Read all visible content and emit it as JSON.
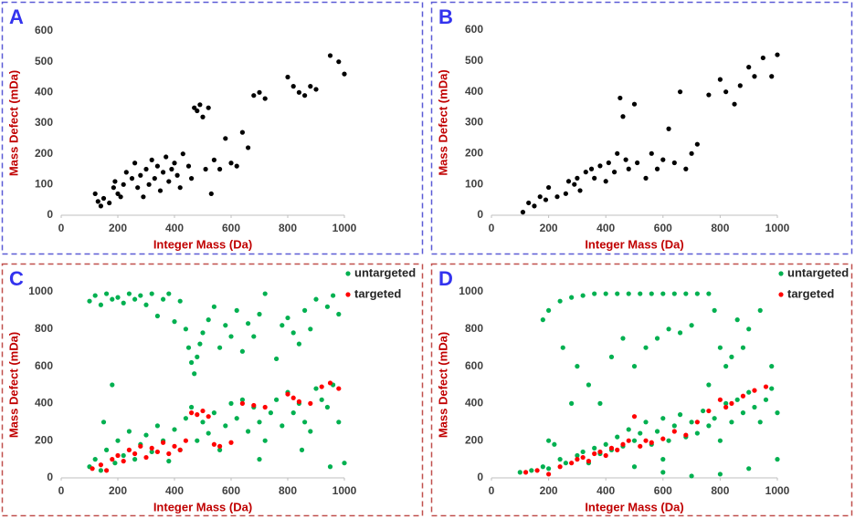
{
  "chart_data": [
    {
      "type": "scatter",
      "panel_label": "A",
      "xlabel": "Integer Mass (Da)",
      "ylabel": "Mass Defect (mDa)",
      "xlim": [
        0,
        1000
      ],
      "ylim": [
        0,
        600
      ],
      "xticks": [
        0,
        200,
        400,
        600,
        800,
        1000
      ],
      "yticks": [
        0,
        100,
        200,
        300,
        400,
        500,
        600
      ],
      "series": [
        {
          "color": "#000000",
          "x": [
            120,
            130,
            140,
            150,
            170,
            185,
            190,
            200,
            210,
            220,
            230,
            250,
            260,
            270,
            280,
            290,
            300,
            310,
            320,
            330,
            340,
            350,
            360,
            370,
            380,
            390,
            400,
            410,
            420,
            430,
            450,
            460,
            470,
            480,
            490,
            500,
            520,
            510,
            530,
            540,
            560,
            580,
            600,
            620,
            640,
            660,
            680,
            700,
            720,
            800,
            820,
            840,
            860,
            880,
            900,
            950,
            980,
            1000
          ],
          "y": [
            70,
            45,
            30,
            55,
            40,
            90,
            110,
            70,
            60,
            100,
            140,
            120,
            170,
            90,
            130,
            60,
            150,
            100,
            180,
            120,
            160,
            80,
            140,
            190,
            110,
            150,
            170,
            130,
            90,
            200,
            160,
            120,
            350,
            340,
            360,
            320,
            350,
            150,
            70,
            180,
            150,
            250,
            170,
            160,
            270,
            220,
            390,
            400,
            380,
            450,
            420,
            400,
            390,
            420,
            410,
            520,
            500,
            460
          ]
        }
      ]
    },
    {
      "type": "scatter",
      "panel_label": "B",
      "xlabel": "Integer Mass (Da)",
      "ylabel": "Mass Defect (mDa)",
      "xlim": [
        0,
        1000
      ],
      "ylim": [
        0,
        600
      ],
      "xticks": [
        0,
        200,
        400,
        600,
        800,
        1000
      ],
      "yticks": [
        0,
        100,
        200,
        300,
        400,
        500,
        600
      ],
      "series": [
        {
          "color": "#000000",
          "x": [
            110,
            130,
            150,
            170,
            190,
            200,
            230,
            260,
            270,
            290,
            300,
            310,
            330,
            350,
            360,
            380,
            400,
            410,
            430,
            440,
            450,
            460,
            470,
            480,
            500,
            510,
            540,
            560,
            580,
            600,
            620,
            640,
            660,
            680,
            700,
            720,
            760,
            800,
            820,
            850,
            870,
            900,
            920,
            950,
            980,
            1000
          ],
          "y": [
            10,
            40,
            30,
            60,
            50,
            90,
            60,
            70,
            110,
            100,
            120,
            80,
            140,
            150,
            120,
            160,
            110,
            170,
            140,
            200,
            380,
            320,
            180,
            150,
            360,
            170,
            120,
            200,
            150,
            180,
            280,
            170,
            400,
            150,
            200,
            230,
            390,
            440,
            400,
            360,
            420,
            480,
            450,
            510,
            450,
            520
          ]
        }
      ]
    },
    {
      "type": "scatter",
      "panel_label": "C",
      "xlabel": "Integer Mass (Da)",
      "ylabel": "Mass Defect (mDa)",
      "xlim": [
        0,
        1000
      ],
      "ylim": [
        0,
        1000
      ],
      "xticks": [
        0,
        200,
        400,
        600,
        800,
        1000
      ],
      "yticks": [
        0,
        200,
        400,
        600,
        800,
        1000
      ],
      "legend": "top-right",
      "series": [
        {
          "name": "untargeted",
          "color": "#00b050",
          "x": [
            100,
            120,
            140,
            160,
            180,
            190,
            200,
            220,
            240,
            260,
            280,
            300,
            320,
            340,
            360,
            380,
            400,
            420,
            440,
            460,
            480,
            500,
            520,
            540,
            560,
            580,
            600,
            620,
            640,
            660,
            680,
            700,
            720,
            740,
            760,
            780,
            800,
            820,
            840,
            860,
            880,
            900,
            920,
            940,
            960,
            980,
            1000,
            100,
            120,
            140,
            160,
            180,
            200,
            220,
            240,
            260,
            280,
            300,
            320,
            340,
            360,
            380,
            400,
            420,
            440,
            450,
            460,
            470,
            480,
            490,
            500,
            520,
            540,
            560,
            580,
            600,
            620,
            640,
            660,
            680,
            700,
            720,
            760,
            780,
            800,
            820,
            840,
            860,
            880,
            900,
            940,
            960,
            980,
            150,
            700,
            850,
            950
          ],
          "y": [
            60,
            100,
            40,
            150,
            500,
            80,
            200,
            120,
            250,
            100,
            180,
            230,
            140,
            280,
            200,
            90,
            260,
            150,
            320,
            380,
            200,
            300,
            240,
            350,
            150,
            280,
            400,
            320,
            420,
            250,
            380,
            300,
            200,
            350,
            420,
            280,
            460,
            350,
            400,
            300,
            250,
            480,
            420,
            380,
            500,
            300,
            80,
            950,
            980,
            930,
            990,
            960,
            970,
            940,
            990,
            960,
            980,
            930,
            990,
            870,
            960,
            990,
            840,
            950,
            800,
            700,
            620,
            560,
            650,
            720,
            780,
            850,
            920,
            700,
            820,
            760,
            900,
            680,
            830,
            760,
            880,
            990,
            640,
            820,
            860,
            780,
            720,
            900,
            800,
            960,
            920,
            980,
            880,
            300,
            100,
            150,
            60
          ]
        },
        {
          "name": "targeted",
          "color": "#ff0000",
          "x": [
            110,
            140,
            160,
            180,
            200,
            220,
            240,
            260,
            280,
            300,
            320,
            340,
            360,
            380,
            400,
            420,
            440,
            460,
            480,
            500,
            520,
            540,
            560,
            600,
            640,
            680,
            720,
            800,
            820,
            840,
            880,
            920,
            950,
            980
          ],
          "y": [
            50,
            70,
            40,
            100,
            120,
            90,
            150,
            130,
            170,
            110,
            160,
            140,
            190,
            130,
            170,
            150,
            200,
            350,
            340,
            360,
            330,
            180,
            170,
            190,
            400,
            390,
            380,
            450,
            430,
            410,
            400,
            490,
            510,
            480
          ]
        }
      ]
    },
    {
      "type": "scatter",
      "panel_label": "D",
      "xlabel": "Integer Mass (Da)",
      "ylabel": "Mass Defect (mDa)",
      "xlim": [
        0,
        1000
      ],
      "ylim": [
        0,
        1000
      ],
      "xticks": [
        0,
        200,
        400,
        600,
        800,
        1000
      ],
      "yticks": [
        0,
        200,
        400,
        600,
        800,
        1000
      ],
      "legend": "top-right",
      "series": [
        {
          "name": "untargeted",
          "color": "#00b050",
          "x": [
            100,
            140,
            180,
            200,
            240,
            260,
            280,
            300,
            320,
            340,
            360,
            380,
            400,
            420,
            440,
            460,
            480,
            500,
            520,
            540,
            560,
            580,
            600,
            620,
            640,
            660,
            680,
            700,
            720,
            740,
            760,
            780,
            800,
            820,
            840,
            860,
            880,
            900,
            920,
            940,
            960,
            980,
            1000,
            200,
            220,
            180,
            200,
            240,
            280,
            320,
            360,
            400,
            440,
            480,
            520,
            560,
            600,
            640,
            680,
            720,
            760,
            250,
            300,
            340,
            380,
            420,
            460,
            500,
            540,
            580,
            620,
            660,
            700,
            760,
            780,
            800,
            820,
            840,
            860,
            880,
            900,
            940,
            980,
            1000,
            900,
            800,
            700,
            600,
            500,
            600
          ],
          "y": [
            30,
            40,
            60,
            50,
            100,
            80,
            400,
            120,
            140,
            80,
            160,
            130,
            180,
            150,
            220,
            170,
            260,
            200,
            240,
            300,
            180,
            250,
            320,
            200,
            280,
            340,
            220,
            300,
            240,
            360,
            280,
            320,
            200,
            400,
            300,
            420,
            350,
            460,
            380,
            300,
            420,
            480,
            350,
            200,
            180,
            850,
            900,
            950,
            970,
            980,
            990,
            990,
            990,
            990,
            990,
            990,
            990,
            990,
            990,
            990,
            990,
            700,
            600,
            500,
            400,
            650,
            750,
            600,
            700,
            750,
            800,
            780,
            820,
            500,
            900,
            700,
            600,
            650,
            850,
            700,
            800,
            900,
            600,
            100,
            50,
            20,
            10,
            30,
            60,
            100
          ]
        },
        {
          "name": "targeted",
          "color": "#ff0000",
          "x": [
            120,
            160,
            200,
            240,
            280,
            300,
            320,
            340,
            360,
            380,
            400,
            420,
            440,
            460,
            480,
            500,
            520,
            540,
            560,
            600,
            640,
            680,
            720,
            760,
            800,
            820,
            840,
            880,
            920,
            960
          ],
          "y": [
            30,
            40,
            20,
            60,
            80,
            100,
            110,
            90,
            130,
            140,
            120,
            160,
            150,
            180,
            200,
            330,
            170,
            200,
            190,
            210,
            250,
            230,
            300,
            360,
            420,
            380,
            400,
            440,
            470,
            490
          ]
        }
      ]
    }
  ]
}
